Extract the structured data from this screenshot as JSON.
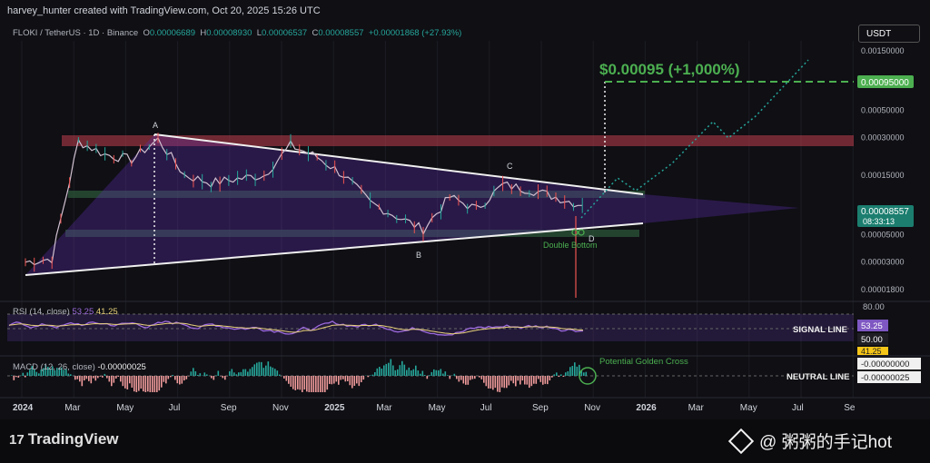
{
  "header": {
    "publish_line": "harvey_hunter created with TradingView.com, Oct 20, 2025 15:26 UTC",
    "symbol_line": "FLOKI / TetherUS · 1D · Binance",
    "ohlc": {
      "o_label": "O",
      "o": "0.00006689",
      "h_label": "H",
      "h": "0.00008930",
      "l_label": "L",
      "l": "0.00006537",
      "c_label": "C",
      "c": "0.00008557",
      "change": "+0.00001868 (+27.93%)"
    },
    "currency_button": "USDT"
  },
  "colors": {
    "bg": "#0f0f14",
    "up": "#26a69a",
    "down": "#ef5350",
    "target": "#4caf50",
    "triangle": "#7b3fd0",
    "resistance": "#b03a48"
  },
  "chart_data": {
    "type": "line",
    "title": "FLOKI / TetherUS",
    "ylabel": "",
    "xlabel": "",
    "scale": "log",
    "ylim": [
      1.7e-05,
      0.0018
    ],
    "x_ticks": [
      "2024",
      "Mar",
      "May",
      "Jul",
      "Sep",
      "Nov",
      "2025",
      "Mar",
      "May",
      "Jul",
      "Sep",
      "Nov",
      "2026",
      "Mar",
      "May",
      "Jul",
      "Se"
    ],
    "y_ticks": [
      "0.00150000",
      "0.00050000",
      "0.00030000",
      "0.00015000",
      "0.00005000",
      "0.00003000",
      "0.00001800"
    ],
    "series": [
      {
        "values_note": "",
        "x": [
          "2024-01",
          "2024-02",
          "2024-03",
          "2024-04",
          "2024-05",
          "2024-06",
          "2024-07",
          "2024-08",
          "2024-09",
          "2024-10",
          "2024-11",
          "2024-12",
          "2025-01",
          "2025-02",
          "2025-03",
          "2025-04",
          "2025-05",
          "2025-06",
          "2025-07",
          "2025-08",
          "2025-09",
          "2025-10"
        ],
        "values": [
          3e-05,
          3.2e-05,
          0.00028,
          0.00022,
          0.0002,
          0.00029,
          0.00015,
          0.00013,
          0.00014,
          0.00015,
          0.00026,
          0.00021,
          0.00015,
          9e-05,
          7e-05,
          5.5e-05,
          0.0001,
          8e-05,
          0.000125,
          0.000115,
          0.0001,
          8.56e-05
        ]
      }
    ],
    "annotations": {
      "target_text": "$0.00095 (+1,000%)",
      "target_price": "0.00095000",
      "current_price": "0.00008557",
      "countdown": "08:33:13",
      "points": [
        "A",
        "B",
        "C",
        "D"
      ],
      "double_bottom": "Double Bottom"
    },
    "rsi": {
      "label": "RSI (14, close)",
      "rsi_value": "53.25",
      "ma_value": "41.25",
      "levels": [
        "80.00",
        "50.00"
      ],
      "signal_label": "SIGNAL LINE",
      "tag_rsi": "53.25",
      "tag_50": "50.00",
      "tag_ma": "41.25"
    },
    "macd": {
      "label": "MACD (12, 26, close)",
      "value": "-0.00000025",
      "neutral_label": "NEUTRAL LINE",
      "tag_zero": "-0.00000000",
      "tag_val": "-0.00000025",
      "golden_cross": "Potential Golden Cross"
    }
  },
  "footer": {
    "brand": "TradingView",
    "brand_mark": "17",
    "watermark": "@ 粥粥的手记hot"
  }
}
